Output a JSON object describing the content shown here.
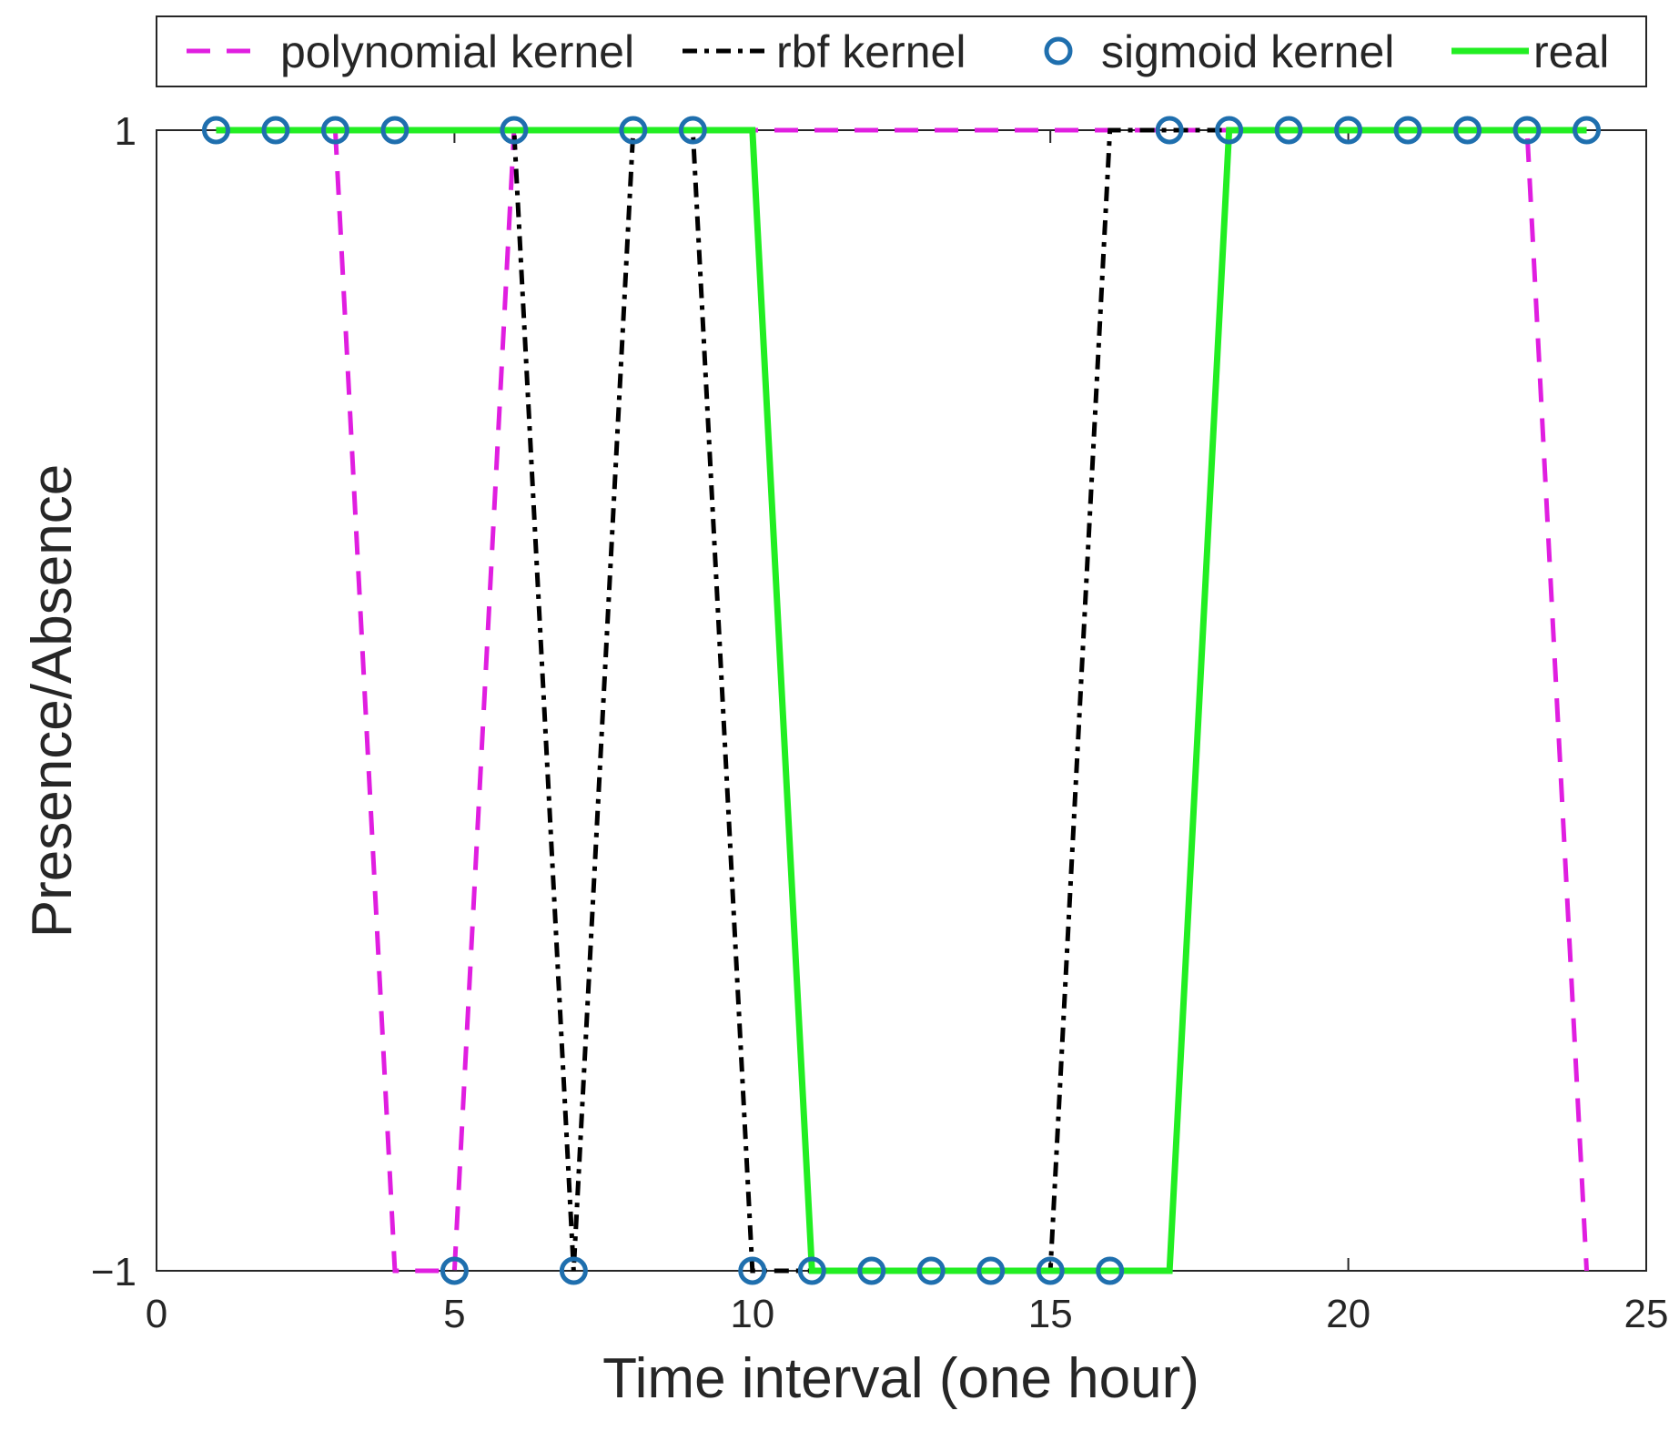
{
  "chart_data": {
    "type": "line",
    "title": "",
    "xlabel": "Time interval (one hour)",
    "ylabel": "Presence/Absence",
    "xlim": [
      0,
      25
    ],
    "ylim": [
      -1,
      1
    ],
    "xticks": [
      0,
      5,
      10,
      15,
      20,
      25
    ],
    "xtick_labels": [
      "0",
      "5",
      "10",
      "15",
      "20",
      "25"
    ],
    "yticks": [
      -1,
      1
    ],
    "ytick_labels": [
      "−1",
      "1"
    ],
    "legend_position": "top",
    "series": [
      {
        "name": "polynomial kernel",
        "style": "dashed",
        "color": "#e01ee0",
        "x": [
          1,
          2,
          3,
          4,
          5,
          6,
          7,
          8,
          9,
          10,
          11,
          12,
          13,
          14,
          15,
          16,
          17,
          18,
          19,
          20,
          21,
          22,
          23,
          24
        ],
        "y": [
          1,
          1,
          1,
          -1,
          -1,
          1,
          1,
          1,
          1,
          1,
          1,
          1,
          1,
          1,
          1,
          1,
          1,
          1,
          1,
          1,
          1,
          1,
          1,
          -1
        ]
      },
      {
        "name": "rbf kernel",
        "style": "dashdot",
        "color": "#000000",
        "x": [
          1,
          2,
          3,
          4,
          5,
          6,
          7,
          8,
          9,
          10,
          11,
          12,
          13,
          14,
          15,
          16,
          17,
          18,
          19,
          20,
          21,
          22,
          23,
          24
        ],
        "y": [
          1,
          1,
          1,
          1,
          1,
          1,
          -1,
          1,
          1,
          -1,
          -1,
          -1,
          -1,
          -1,
          -1,
          1,
          1,
          1,
          1,
          1,
          1,
          1,
          1,
          1
        ]
      },
      {
        "name": "sigmoid kernel",
        "style": "markers",
        "color": "#1f6fae",
        "x": [
          1,
          2,
          3,
          4,
          5,
          6,
          7,
          8,
          9,
          10,
          11,
          12,
          13,
          14,
          15,
          16,
          17,
          18,
          19,
          20,
          21,
          22,
          23,
          24
        ],
        "y": [
          1,
          1,
          1,
          1,
          -1,
          1,
          -1,
          1,
          1,
          -1,
          -1,
          -1,
          -1,
          -1,
          -1,
          -1,
          1,
          1,
          1,
          1,
          1,
          1,
          1,
          1
        ]
      },
      {
        "name": "real",
        "style": "solid",
        "color": "#22ee22",
        "x": [
          1,
          2,
          3,
          4,
          5,
          6,
          7,
          8,
          9,
          10,
          11,
          12,
          13,
          14,
          15,
          16,
          17,
          18,
          19,
          20,
          21,
          22,
          23,
          24
        ],
        "y": [
          1,
          1,
          1,
          1,
          1,
          1,
          1,
          1,
          1,
          1,
          -1,
          -1,
          -1,
          -1,
          -1,
          -1,
          -1,
          1,
          1,
          1,
          1,
          1,
          1,
          1
        ]
      }
    ]
  }
}
